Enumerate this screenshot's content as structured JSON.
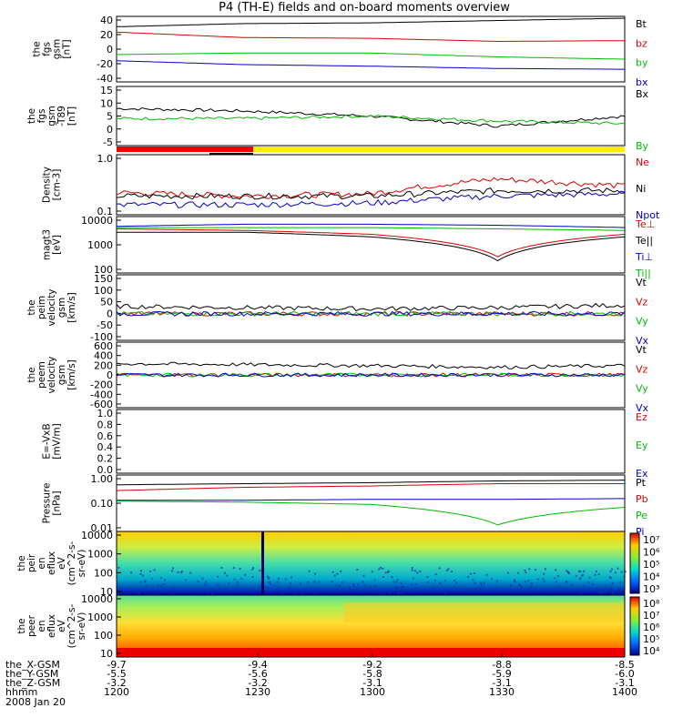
{
  "title": "P4 (TH-E) fields and on-board moments overview",
  "panels": [
    {
      "ylabel": [
        "the",
        "fgs",
        "gsm",
        "[nT]"
      ],
      "ticks": [
        "40",
        "20",
        "0",
        "-20",
        "-40"
      ],
      "legend": [
        {
          "t": "Bt",
          "c": "#000000"
        },
        {
          "t": "bz",
          "c": "#dd0000"
        },
        {
          "t": "by",
          "c": "#00bb00"
        },
        {
          "t": "bx",
          "c": "#0000cc"
        }
      ]
    },
    {
      "ylabel": [
        "the",
        "fgs",
        "gsm",
        "-T89",
        "[nT]"
      ],
      "ticks": [
        "15",
        "10",
        "5",
        "0",
        "-5"
      ],
      "legend": [
        {
          "t": "Bx",
          "c": "#000000"
        },
        {
          "t": "By",
          "c": "#00bb00"
        }
      ]
    },
    {
      "ylabel": [
        "Density",
        "[cm-3]"
      ],
      "ticks": [
        "1.0",
        "0.1"
      ],
      "legend": [
        {
          "t": "Ne",
          "c": "#dd0000"
        },
        {
          "t": "Ni",
          "c": "#000000"
        },
        {
          "t": "Npot",
          "c": "#0000cc"
        }
      ]
    },
    {
      "ylabel": [
        "magt3",
        "[eV]"
      ],
      "ticks": [
        "10000",
        "1000",
        "100"
      ],
      "legend": [
        {
          "t": "Te⊥",
          "c": "#dd0000"
        },
        {
          "t": "Te||",
          "c": "#000000"
        },
        {
          "t": "Ti⊥",
          "c": "#0000cc"
        },
        {
          "t": "Ti||",
          "c": "#00bb00"
        }
      ]
    },
    {
      "ylabel": [
        "the",
        "peim",
        "velocity",
        "gsm",
        "[km/s]"
      ],
      "ticks": [
        "150",
        "100",
        "50",
        "0",
        "-50",
        "-100"
      ],
      "legend": [
        {
          "t": "Vt",
          "c": "#000000"
        },
        {
          "t": "Vz",
          "c": "#dd0000"
        },
        {
          "t": "Vy",
          "c": "#00bb00"
        },
        {
          "t": "Vx",
          "c": "#0000cc"
        }
      ]
    },
    {
      "ylabel": [
        "the",
        "peem",
        "velocity",
        "gsm",
        "[km/s]"
      ],
      "ticks": [
        "600",
        "400",
        "200",
        "0",
        "-200",
        "-400",
        "-600"
      ],
      "legend": [
        {
          "t": "Vt",
          "c": "#000000"
        },
        {
          "t": "Vz",
          "c": "#dd0000"
        },
        {
          "t": "Vy",
          "c": "#00bb00"
        },
        {
          "t": "Vx",
          "c": "#0000cc"
        }
      ]
    },
    {
      "ylabel": [
        "E=-VxB",
        "[mV/m]"
      ],
      "ticks": [
        "1.0",
        "0.8",
        "0.6",
        "0.4",
        "0.2",
        "0.0"
      ],
      "legend": [
        {
          "t": "Ez",
          "c": "#dd0000"
        },
        {
          "t": "Ey",
          "c": "#00bb00"
        },
        {
          "t": "Ex",
          "c": "#0000cc"
        }
      ]
    },
    {
      "ylabel": [
        "Pressure",
        "[nPa]"
      ],
      "ticks": [
        "1.00",
        "0.10",
        "0.01"
      ],
      "legend": [
        {
          "t": "Pt",
          "c": "#000000"
        },
        {
          "t": "Pb",
          "c": "#dd0000"
        },
        {
          "t": "Pe",
          "c": "#00bb00"
        },
        {
          "t": "Pi",
          "c": "#0000cc"
        }
      ]
    },
    {
      "ylabel": [
        "the",
        "peir",
        "en",
        "eflux",
        "eV",
        "(cm^2-s-",
        "sr-eV)"
      ],
      "ticks": [
        "10000",
        "1000",
        "100",
        "10"
      ],
      "colorbar": [
        "10⁷",
        "10⁶",
        "10⁵",
        "10⁴",
        "10³"
      ]
    },
    {
      "ylabel": [
        "the",
        "peer",
        "en",
        "eflux",
        "eV",
        "(cm^2-s-",
        "sr-eV)"
      ],
      "ticks": [
        "10000",
        "1000",
        "100",
        "10"
      ],
      "colorbar": [
        "10⁸",
        "10⁷",
        "10⁶",
        "10⁵",
        "10⁴"
      ]
    }
  ],
  "bottom_axis": {
    "rows": [
      {
        "label": "the_X-GSM",
        "values": [
          "-9.7",
          "-9.4",
          "-9.2",
          "-8.8",
          "-8.5"
        ]
      },
      {
        "label": "the_Y-GSM",
        "values": [
          "-5.5",
          "-5.6",
          "-5.8",
          "-5.9",
          "-6.0"
        ]
      },
      {
        "label": "the_Z-GSM",
        "values": [
          "-3.2",
          "-3.2",
          "-3.1",
          "-3.1",
          "-3.1"
        ]
      },
      {
        "label": "hhmm",
        "values": [
          "1200",
          "1230",
          "1300",
          "1330",
          "1400"
        ]
      }
    ],
    "date": "2008 Jan 20"
  },
  "chart_data": {
    "type": "line",
    "title": "P4 (TH-E) fields and on-board moments overview",
    "x": [
      "1200",
      "1230",
      "1300",
      "1330",
      "1400"
    ],
    "panels": [
      {
        "ylabel": "the fgs gsm [nT]",
        "ylim": [
          -40,
          40
        ],
        "series": [
          {
            "name": "Bt",
            "x": [
              "1200",
              "1230",
              "1300",
              "1330",
              "1400"
            ],
            "values": [
              29,
              33,
              34,
              37,
              40
            ]
          },
          {
            "name": "bz",
            "x": [
              "1200",
              "1230",
              "1300",
              "1330",
              "1400"
            ],
            "values": [
              22,
              15,
              14,
              10,
              11
            ]
          },
          {
            "name": "by",
            "x": [
              "1200",
              "1230",
              "1300",
              "1330",
              "1400"
            ],
            "values": [
              -7,
              -5,
              -5,
              -10,
              -13
            ]
          },
          {
            "name": "bx",
            "x": [
              "1200",
              "1230",
              "1300",
              "1330",
              "1400"
            ],
            "values": [
              -15,
              -20,
              -22,
              -25,
              -26
            ]
          }
        ]
      },
      {
        "ylabel": "the fgs gsm -T89 [nT]",
        "ylim": [
          -7,
          15
        ],
        "series": [
          {
            "name": "Bx",
            "x": [
              "1200",
              "1230",
              "1300",
              "1330",
              "1400"
            ],
            "values": [
              7,
              6,
              4,
              0,
              4
            ]
          },
          {
            "name": "By",
            "x": [
              "1200",
              "1230",
              "1300",
              "1330",
              "1400"
            ],
            "values": [
              3,
              3,
              4,
              2,
              1
            ]
          }
        ]
      },
      {
        "ylabel": "Density [cm-3]",
        "ylim": [
          0.1,
          1.0
        ],
        "log": true,
        "series": [
          {
            "name": "Ne",
            "x": [
              "1200",
              "1230",
              "1300",
              "1330",
              "1400"
            ],
            "values": [
              0.23,
              0.2,
              0.22,
              0.4,
              0.3
            ]
          },
          {
            "name": "Ni",
            "x": [
              "1200",
              "1230",
              "1300",
              "1330",
              "1400"
            ],
            "values": [
              0.2,
              0.2,
              0.2,
              0.25,
              0.25
            ]
          },
          {
            "name": "Npot",
            "x": [
              "1200",
              "1230",
              "1300",
              "1330",
              "1400"
            ],
            "values": [
              0.14,
              0.14,
              0.15,
              0.2,
              0.22
            ]
          }
        ]
      },
      {
        "ylabel": "magt3 [eV]",
        "ylim": [
          100,
          10000
        ],
        "log": true,
        "series": [
          {
            "name": "Te⊥",
            "x": [
              "1200",
              "1230",
              "1300",
              "1330",
              "1400"
            ],
            "values": [
              4000,
              3500,
              2500,
              350,
              2500
            ]
          },
          {
            "name": "Te||",
            "x": [
              "1200",
              "1230",
              "1300",
              "1330",
              "1400"
            ],
            "values": [
              3000,
              3000,
              2000,
              250,
              2000
            ]
          },
          {
            "name": "Ti⊥",
            "x": [
              "1200",
              "1230",
              "1300",
              "1330",
              "1400"
            ],
            "values": [
              5000,
              6000,
              6000,
              5500,
              4500
            ]
          },
          {
            "name": "Ti||",
            "x": [
              "1200",
              "1230",
              "1300",
              "1330",
              "1400"
            ],
            "values": [
              4500,
              4500,
              4500,
              4000,
              3500
            ]
          }
        ]
      },
      {
        "ylabel": "the peim velocity gsm [km/s]",
        "ylim": [
          -100,
          150
        ],
        "series": [
          {
            "name": "Vt",
            "x": [
              "1200",
              "1230",
              "1300",
              "1330",
              "1400"
            ],
            "values": [
              30,
              25,
              20,
              25,
              35
            ]
          },
          {
            "name": "Vz",
            "x": [
              "1200",
              "1230",
              "1300",
              "1330",
              "1400"
            ],
            "values": [
              0,
              0,
              0,
              0,
              0
            ]
          },
          {
            "name": "Vy",
            "x": [
              "1200",
              "1230",
              "1300",
              "1330",
              "1400"
            ],
            "values": [
              0,
              0,
              0,
              0,
              0
            ]
          },
          {
            "name": "Vx",
            "x": [
              "1200",
              "1230",
              "1300",
              "1330",
              "1400"
            ],
            "values": [
              0,
              0,
              0,
              0,
              0
            ]
          }
        ]
      },
      {
        "ylabel": "the peem velocity gsm [km/s]",
        "ylim": [
          -600,
          600
        ],
        "series": [
          {
            "name": "Vt",
            "x": [
              "1200",
              "1230",
              "1300",
              "1330",
              "1400"
            ],
            "values": [
              220,
              200,
              180,
              150,
              180
            ]
          },
          {
            "name": "Vz",
            "x": [
              "1200",
              "1230",
              "1300",
              "1330",
              "1400"
            ],
            "values": [
              0,
              0,
              0,
              0,
              0
            ]
          },
          {
            "name": "Vy",
            "x": [
              "1200",
              "1230",
              "1300",
              "1330",
              "1400"
            ],
            "values": [
              0,
              0,
              0,
              0,
              0
            ]
          },
          {
            "name": "Vx",
            "x": [
              "1200",
              "1230",
              "1300",
              "1330",
              "1400"
            ],
            "values": [
              0,
              0,
              0,
              0,
              0
            ]
          }
        ]
      },
      {
        "ylabel": "E=-VxB [mV/m]",
        "ylim": [
          0,
          1
        ],
        "series": []
      },
      {
        "ylabel": "Pressure [nPa]",
        "ylim": [
          0.01,
          1
        ],
        "log": true,
        "series": [
          {
            "name": "Pt",
            "x": [
              "1200",
              "1230",
              "1300",
              "1330",
              "1400"
            ],
            "values": [
              0.5,
              0.55,
              0.6,
              0.7,
              0.75
            ]
          },
          {
            "name": "Pb",
            "x": [
              "1200",
              "1230",
              "1300",
              "1330",
              "1400"
            ],
            "values": [
              0.3,
              0.4,
              0.45,
              0.55,
              0.55
            ]
          },
          {
            "name": "Pe",
            "x": [
              "1200",
              "1230",
              "1300",
              "1330",
              "1400"
            ],
            "values": [
              0.12,
              0.11,
              0.09,
              0.015,
              0.07
            ]
          },
          {
            "name": "Pi",
            "x": [
              "1200",
              "1230",
              "1300",
              "1330",
              "1400"
            ],
            "values": [
              0.13,
              0.13,
              0.14,
              0.14,
              0.15
            ]
          }
        ]
      }
    ]
  },
  "colors": {
    "state_bar_red": "#ee0000",
    "state_bar_yellow": "#ffee00"
  }
}
